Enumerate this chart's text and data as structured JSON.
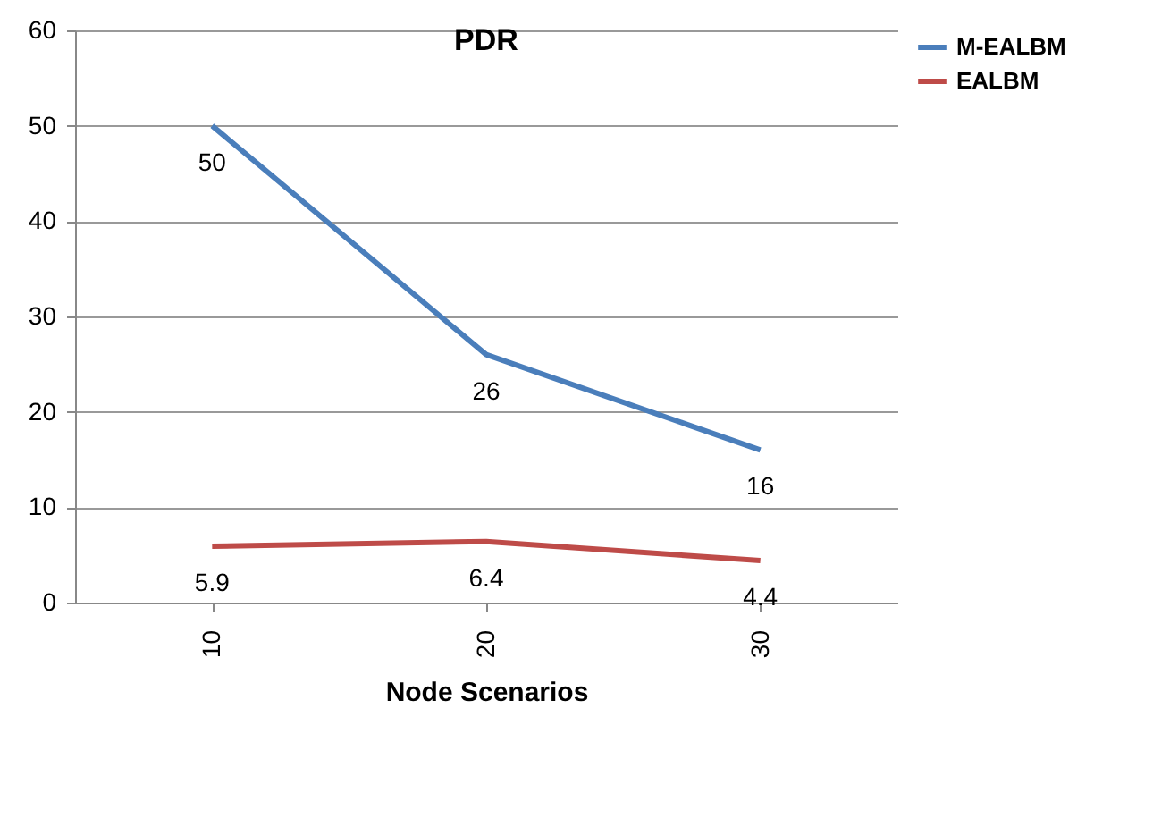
{
  "chart_data": {
    "type": "line",
    "title": "PDR",
    "xlabel": "Node Scenarios",
    "categories": [
      "10",
      "20",
      "30"
    ],
    "series": [
      {
        "name": "M-EALBM",
        "color": "#4a7ebb",
        "values": [
          50,
          26,
          16
        ]
      },
      {
        "name": "EALBM",
        "color": "#be4b48",
        "values": [
          5.9,
          6.4,
          4.4
        ]
      }
    ],
    "ylim": [
      0,
      60
    ],
    "yticks": [
      0,
      10,
      20,
      30,
      40,
      50,
      60
    ],
    "grid": "y",
    "legend": "right",
    "data_labels": true,
    "marker": "none",
    "line_style": "solid"
  }
}
